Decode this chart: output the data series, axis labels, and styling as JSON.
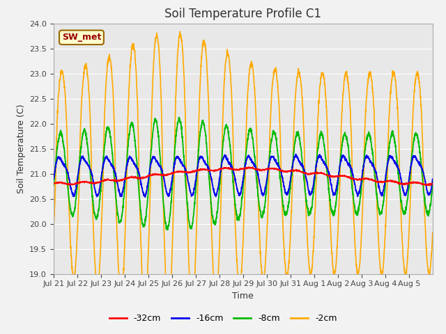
{
  "title": "Soil Temperature Profile C1",
  "xlabel": "Time",
  "ylabel": "Soil Temperature (C)",
  "ylim": [
    19.0,
    24.0
  ],
  "yticks": [
    19.0,
    19.5,
    20.0,
    20.5,
    21.0,
    21.5,
    22.0,
    22.5,
    23.0,
    23.5,
    24.0
  ],
  "x_labels": [
    "Jul 21",
    "Jul 22",
    "Jul 23",
    "Jul 24",
    "Jul 25",
    "Jul 26",
    "Jul 27",
    "Jul 28",
    "Jul 29",
    "Jul 30",
    "Jul 31",
    "Aug 1",
    "Aug 2",
    "Aug 3",
    "Aug 4",
    "Aug 5"
  ],
  "legend_label": "SW_met",
  "series_labels": [
    "-32cm",
    "-16cm",
    "-8cm",
    "-2cm"
  ],
  "series_colors": [
    "#ff0000",
    "#0000ee",
    "#00bb00",
    "#ffaa00"
  ],
  "fig_bg": "#f2f2f2",
  "plot_bg": "#e8e8e8",
  "title_fontsize": 12,
  "axis_fontsize": 9,
  "tick_fontsize": 8
}
